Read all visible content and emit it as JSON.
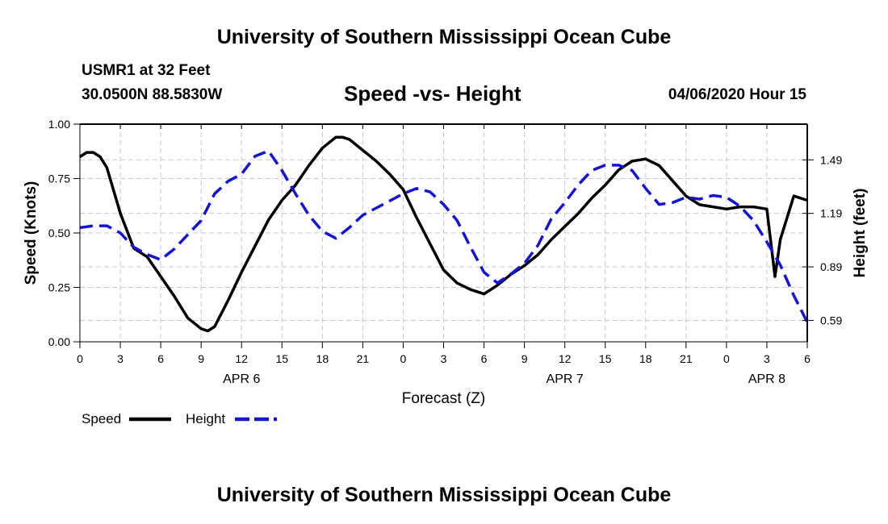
{
  "header": {
    "title": "University of Southern Mississippi Ocean Cube",
    "station": "USMR1 at 32 Feet",
    "coordinates": "30.0500N 88.5830W",
    "plot_title": "Speed -vs- Height",
    "date": "04/06/2020 Hour 15"
  },
  "footer": {
    "title": "University of Southern Mississippi Ocean Cube"
  },
  "chart_data": {
    "type": "line",
    "title": "Speed -vs- Height",
    "xlabel": "Forecast (Z)",
    "ylabel": "Speed (Knots)",
    "ylabel_right": "Height (feet)",
    "x_range": [
      0,
      54
    ],
    "ylim": [
      0,
      1.0
    ],
    "ylim_right": [
      0.47,
      1.69
    ],
    "x_ticks": [
      0,
      3,
      6,
      9,
      12,
      15,
      18,
      21,
      24,
      27,
      30,
      33,
      36,
      39,
      42,
      45,
      48,
      51,
      54
    ],
    "x_tick_labels": [
      "0",
      "3",
      "6",
      "9",
      "12",
      "15",
      "18",
      "21",
      "0",
      "3",
      "6",
      "9",
      "12",
      "15",
      "18",
      "21",
      "0",
      "3",
      "6"
    ],
    "y_ticks": [
      0,
      0.25,
      0.5,
      0.75,
      1.0
    ],
    "y_tick_labels": [
      "0.00",
      "0.25",
      "0.50",
      "0.75",
      "1.00"
    ],
    "y_ticks_right": [
      0.59,
      0.89,
      1.19,
      1.49
    ],
    "y_tick_labels_right": [
      "0.59",
      "0.89",
      "1.19",
      "1.49"
    ],
    "day_labels": [
      {
        "x": 12,
        "label": "APR 6"
      },
      {
        "x": 36,
        "label": "APR 7"
      },
      {
        "x": 51,
        "label": "APR 8"
      }
    ],
    "grid": true,
    "series": [
      {
        "name": "Speed",
        "color": "#000000",
        "dash": "solid",
        "axis": "left",
        "x": [
          0,
          0.5,
          1,
          1.5,
          2,
          3,
          4,
          5,
          6,
          7,
          8,
          9,
          9.5,
          10,
          11,
          12,
          13,
          14,
          15,
          16,
          17,
          18,
          19,
          19.5,
          20,
          21,
          22,
          23,
          24,
          25,
          26,
          27,
          28,
          29,
          30,
          31,
          32,
          33,
          34,
          35,
          36,
          37,
          38,
          39,
          40,
          41,
          42,
          43,
          44,
          45,
          46,
          47,
          48,
          49,
          50,
          51,
          51.6,
          52,
          53,
          54
        ],
        "values": [
          0.85,
          0.87,
          0.87,
          0.85,
          0.8,
          0.59,
          0.43,
          0.39,
          0.3,
          0.21,
          0.11,
          0.06,
          0.05,
          0.07,
          0.19,
          0.32,
          0.44,
          0.56,
          0.65,
          0.72,
          0.81,
          0.89,
          0.94,
          0.94,
          0.93,
          0.88,
          0.83,
          0.77,
          0.7,
          0.57,
          0.45,
          0.33,
          0.27,
          0.24,
          0.22,
          0.26,
          0.31,
          0.35,
          0.4,
          0.47,
          0.53,
          0.59,
          0.66,
          0.72,
          0.79,
          0.83,
          0.84,
          0.81,
          0.74,
          0.67,
          0.63,
          0.62,
          0.61,
          0.62,
          0.62,
          0.61,
          0.3,
          0.47,
          0.67,
          0.65
        ]
      },
      {
        "name": "Height",
        "color": "#1414d2",
        "dash": "dashed",
        "axis": "right",
        "x": [
          0,
          1,
          2,
          3,
          4,
          5,
          6,
          7,
          8,
          9,
          10,
          11,
          12,
          13,
          14,
          15,
          16,
          17,
          18,
          19,
          20,
          21,
          22,
          23,
          24,
          25,
          26,
          27,
          28,
          29,
          30,
          31,
          32,
          33,
          34,
          35,
          36,
          37,
          38,
          39,
          40,
          41,
          42,
          43,
          44,
          45,
          46,
          47,
          48,
          49,
          50,
          51,
          52,
          53,
          54
        ],
        "values": [
          1.11,
          1.12,
          1.12,
          1.08,
          1.0,
          0.96,
          0.93,
          0.99,
          1.07,
          1.15,
          1.3,
          1.37,
          1.41,
          1.51,
          1.54,
          1.43,
          1.3,
          1.18,
          1.09,
          1.05,
          1.11,
          1.18,
          1.22,
          1.26,
          1.3,
          1.33,
          1.31,
          1.24,
          1.15,
          1.0,
          0.86,
          0.8,
          0.85,
          0.91,
          1.01,
          1.16,
          1.25,
          1.35,
          1.43,
          1.46,
          1.46,
          1.43,
          1.33,
          1.24,
          1.25,
          1.28,
          1.27,
          1.29,
          1.28,
          1.23,
          1.15,
          1.03,
          0.9,
          0.73,
          0.58
        ]
      }
    ],
    "legend": {
      "position": "bottom-left",
      "entries": [
        {
          "label": "Speed",
          "color": "#000000",
          "dash": "solid"
        },
        {
          "label": "Height",
          "color": "#1414d2",
          "dash": "dashed"
        }
      ]
    }
  }
}
